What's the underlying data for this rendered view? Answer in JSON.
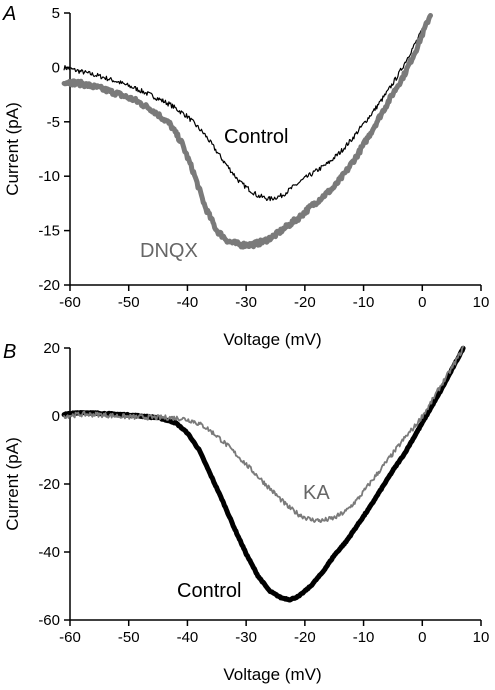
{
  "chart_data": [
    {
      "type": "line",
      "panel_label": "A",
      "xlabel": "Voltage (mV)",
      "ylabel": "Current (pA)",
      "xlim": [
        -60,
        10
      ],
      "ylim": [
        -20,
        5
      ],
      "xticks": [
        -60,
        -50,
        -40,
        -30,
        -20,
        -10,
        0,
        10
      ],
      "yticks": [
        5,
        0,
        -5,
        -10,
        -15,
        -20
      ],
      "grid": false,
      "series": [
        {
          "name": "Control",
          "color": "#000000",
          "noisy": true,
          "x": [
            -61,
            -58,
            -55,
            -52,
            -49,
            -46,
            -43,
            -40,
            -37,
            -34,
            -31,
            -28,
            -26,
            -24,
            -22,
            -20,
            -18,
            -16,
            -14,
            -12,
            -10,
            -8,
            -6,
            -4,
            -2,
            0,
            1.5
          ],
          "y": [
            0,
            -0.4,
            -0.8,
            -1.3,
            -1.9,
            -2.6,
            -3.4,
            -4.5,
            -6.2,
            -8.5,
            -10.6,
            -11.8,
            -12.1,
            -11.8,
            -11.0,
            -10.2,
            -9.5,
            -8.8,
            -7.8,
            -6.6,
            -5.2,
            -3.8,
            -2.3,
            -0.6,
            1.4,
            3.4,
            5.0
          ]
        },
        {
          "name": "DNQX",
          "color": "#7a7a7a",
          "noisy": true,
          "x": [
            -61,
            -58,
            -55,
            -52,
            -49,
            -46,
            -43,
            -41,
            -39,
            -37,
            -35,
            -33,
            -31,
            -29,
            -27,
            -25,
            -23,
            -21,
            -19,
            -17,
            -15,
            -13,
            -11,
            -9,
            -7,
            -5,
            -3,
            -1,
            1.5
          ],
          "y": [
            -1.3,
            -1.5,
            -1.9,
            -2.4,
            -3.0,
            -3.9,
            -5.2,
            -6.9,
            -9.6,
            -12.8,
            -15.0,
            -16.0,
            -16.3,
            -16.3,
            -16.0,
            -15.4,
            -14.6,
            -13.8,
            -12.8,
            -11.9,
            -11.0,
            -9.6,
            -8.0,
            -6.2,
            -4.3,
            -2.4,
            -0.6,
            1.7,
            5.0
          ]
        }
      ],
      "annotations": [
        {
          "text": "Control",
          "color": "#000000"
        },
        {
          "text": "DNQX",
          "color": "#666666"
        }
      ]
    },
    {
      "type": "line",
      "panel_label": "B",
      "xlabel": "Voltage (mV)",
      "ylabel": "Current (pA)",
      "xlim": [
        -60,
        10
      ],
      "ylim": [
        -60,
        20
      ],
      "xticks": [
        -60,
        -50,
        -40,
        -30,
        -20,
        -10,
        0,
        10
      ],
      "yticks": [
        20,
        0,
        -20,
        -40,
        -60
      ],
      "grid": false,
      "series": [
        {
          "name": "Control",
          "color": "#000000",
          "noisy": false,
          "x": [
            -61,
            -58,
            -55,
            -50,
            -45,
            -42,
            -40,
            -38,
            -36,
            -34,
            -32,
            -30,
            -28,
            -26,
            -24,
            -22.5,
            -21,
            -19,
            -17,
            -15,
            -13,
            -11,
            -9,
            -7,
            -5,
            -3,
            -1,
            1,
            3,
            5,
            7
          ],
          "y": [
            0.5,
            1.0,
            0.8,
            0.3,
            -0.5,
            -2.0,
            -5.0,
            -10.0,
            -17.5,
            -25.0,
            -33.0,
            -40.5,
            -47.0,
            -51.5,
            -53.5,
            -54.0,
            -53.0,
            -50.0,
            -46.0,
            -41.0,
            -37.0,
            -32.0,
            -27.0,
            -21.5,
            -16.0,
            -11.0,
            -5.0,
            1.0,
            7.0,
            13.5,
            20.0
          ]
        },
        {
          "name": "KA",
          "color": "#7a7a7a",
          "noisy": true,
          "x": [
            -61,
            -58,
            -55,
            -52,
            -49,
            -46,
            -43,
            -41,
            -39,
            -37,
            -35,
            -33,
            -31,
            -29,
            -27,
            -25,
            -23,
            -21,
            -19,
            -17,
            -15,
            -13,
            -11,
            -9,
            -7,
            -5,
            -3,
            -1,
            1,
            3,
            5,
            7
          ],
          "y": [
            0,
            0.5,
            0.4,
            0,
            -0.3,
            -0.4,
            -0.5,
            -0.7,
            -1.5,
            -3.2,
            -5.8,
            -9.0,
            -12.5,
            -16.0,
            -19.5,
            -23.0,
            -26.5,
            -29.0,
            -30.5,
            -30.8,
            -30.0,
            -28.0,
            -24.5,
            -20.0,
            -15.5,
            -11.0,
            -6.5,
            -2.5,
            2.5,
            8.5,
            14.0,
            20.0
          ]
        }
      ],
      "annotations": [
        {
          "text": "KA",
          "color": "#666666"
        },
        {
          "text": "Control",
          "color": "#000000"
        }
      ]
    }
  ]
}
